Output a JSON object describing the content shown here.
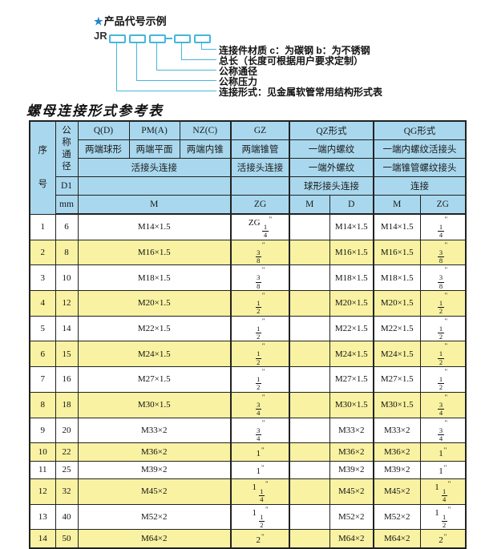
{
  "diagram": {
    "star": "★",
    "title": "产品代号示例",
    "prefix": "JR",
    "labels": [
      "连接件材质 c：为碳钢 b：为不锈钢",
      "总长（长度可根据用户要求定制）",
      "公称通径",
      "公称压力",
      "连接形式：见金属软管常用结构形式表"
    ]
  },
  "table": {
    "title": "螺母连接形式参考表",
    "header": {
      "serial": "序号",
      "diameter": "公称通径",
      "d1": "D1",
      "mm": "mm",
      "col_q": "Q(D)",
      "col_pm": "PM(A)",
      "col_nz": "NZ(C)",
      "col_gz": "GZ",
      "col_qz": "QZ形式",
      "col_qg": "QG形式",
      "q_desc": "两端球形",
      "pm_desc": "两端平面",
      "nz_desc": "两端内锥",
      "gz_desc": "两端锥管",
      "qz_desc1": "一端内螺纹",
      "qg_desc1": "一端内螺纹活接头",
      "union_conn": "活接头连接",
      "gz_conn": "活接头连接",
      "qz_desc2": "一端外螺纹",
      "qg_desc2": "一端锥管螺纹接头",
      "qz_conn": "球形接头连接",
      "qg_conn": "连接",
      "m_label": "M",
      "zg_label": "ZG",
      "qz_m": "M",
      "qz_d": "D",
      "qg_m": "M",
      "qg_zg": "ZG"
    },
    "rows": [
      [
        "1",
        "6",
        "M14×1.5",
        "ZG 1/4\"",
        "",
        "M14×1.5",
        "M14×1.5",
        "1/4\""
      ],
      [
        "2",
        "8",
        "M16×1.5",
        "3/8\"",
        "",
        "M16×1.5",
        "M16×1.5",
        "3/8\""
      ],
      [
        "3",
        "10",
        "M18×1.5",
        "3/8\"",
        "",
        "M18×1.5",
        "M18×1.5",
        "3/8\""
      ],
      [
        "4",
        "12",
        "M20×1.5",
        "1/2\"",
        "",
        "M20×1.5",
        "M20×1.5",
        "1/2\""
      ],
      [
        "5",
        "14",
        "M22×1.5",
        "1/2\"",
        "",
        "M22×1.5",
        "M22×1.5",
        "1/2\""
      ],
      [
        "6",
        "15",
        "M24×1.5",
        "1/2\"",
        "",
        "M24×1.5",
        "M24×1.5",
        "1/2\""
      ],
      [
        "7",
        "16",
        "M27×1.5",
        "1/2\"",
        "",
        "M27×1.5",
        "M27×1.5",
        "1/2\""
      ],
      [
        "8",
        "18",
        "M30×1.5",
        "3/4\"",
        "",
        "M30×1.5",
        "M30×1.5",
        "3/4\""
      ],
      [
        "9",
        "20",
        "M33×2",
        "3/4\"",
        "",
        "M33×2",
        "M33×2",
        "3/4\""
      ],
      [
        "10",
        "22",
        "M36×2",
        "1\"",
        "",
        "M36×2",
        "M36×2",
        "1\""
      ],
      [
        "11",
        "25",
        "M39×2",
        "1\"",
        "",
        "M39×2",
        "M39×2",
        "1\""
      ],
      [
        "12",
        "32",
        "M45×2",
        "1 1/4\"",
        "",
        "M45×2",
        "M45×2",
        "1 1/4\""
      ],
      [
        "13",
        "40",
        "M52×2",
        "1 1/2\"",
        "",
        "M52×2",
        "M52×2",
        "1 1/2\""
      ],
      [
        "14",
        "50",
        "M64×2",
        "2\"",
        "",
        "M64×2",
        "M64×2",
        "2\""
      ]
    ]
  },
  "colors": {
    "accent_cyan": "#45b6dc",
    "star_blue": "#2086c8",
    "header_blue": "#a9d8ee",
    "row_yellow": "#f8f2a2",
    "border": "#222222"
  }
}
